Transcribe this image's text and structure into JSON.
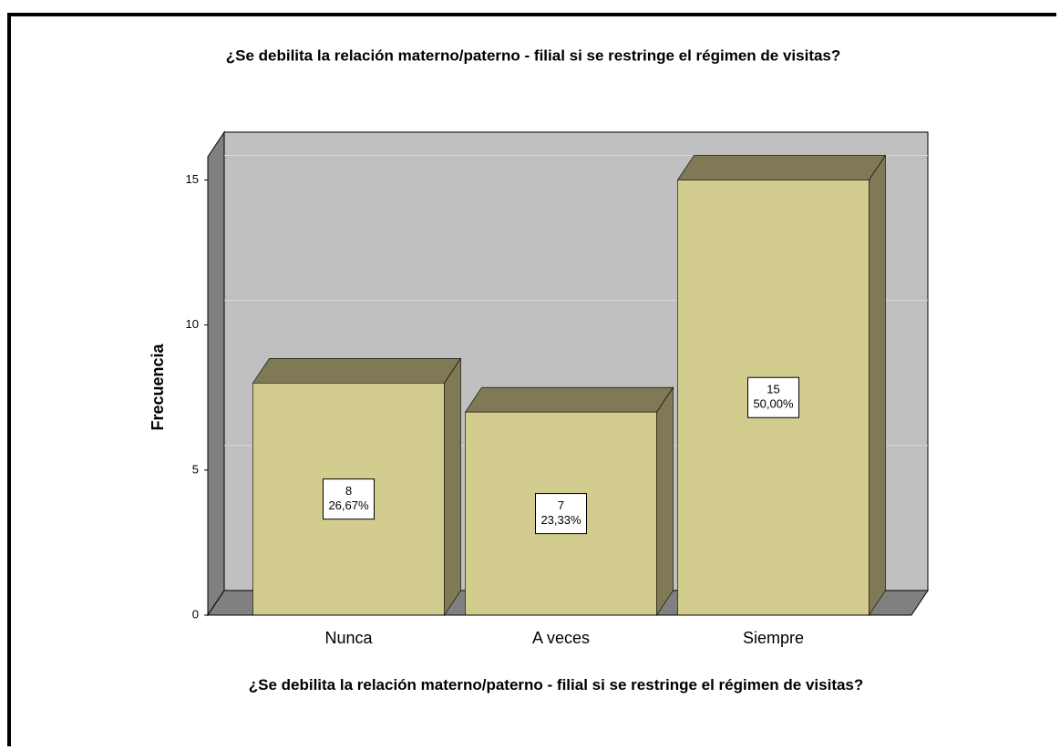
{
  "chart_data": {
    "type": "bar3d",
    "title": "¿Se debilita la relación materno/paterno - filial si se restringe el régimen de visitas?",
    "x_label": "¿Se debilita la relación materno/paterno - filial si se restringe el régimen de visitas?",
    "y_label": "Frecuencia",
    "categories": [
      "Nunca",
      "A veces",
      "Siempre"
    ],
    "values": [
      8,
      7,
      15
    ],
    "percentages": [
      26.67,
      23.33,
      50.0
    ],
    "percentage_labels": [
      "26,67%",
      "23,33%",
      "50,00%"
    ],
    "color": "#d2cc8f",
    "side_color": "#7f7a55",
    "ylim": [
      0,
      15.8
    ],
    "yticks": [
      0,
      5,
      10,
      15
    ],
    "grid": true
  }
}
